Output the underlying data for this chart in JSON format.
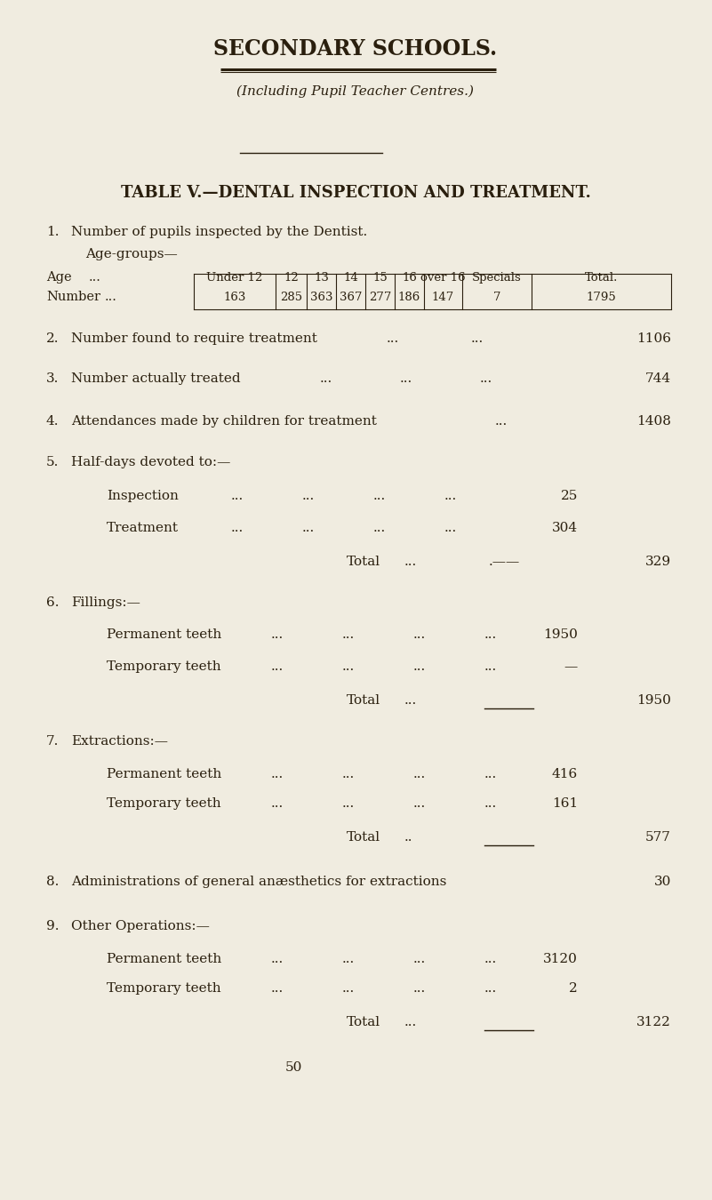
{
  "bg_color": "#f0ece0",
  "text_color": "#2a1f0e",
  "title": "SECONDARY SCHOOLS.",
  "subtitle": "(Including Pupil Teacher Centres.)",
  "table_title": "TABLE V.—DENTAL INSPECTION AND TREATMENT.",
  "age_headers": [
    "Under 12",
    "12",
    "13",
    "14",
    "15",
    "16",
    "over 16",
    "Specials",
    "Total."
  ],
  "age_values": [
    "163",
    "285",
    "363",
    "367",
    "277",
    "186",
    "147",
    "7",
    "1795"
  ],
  "page_num": "50"
}
